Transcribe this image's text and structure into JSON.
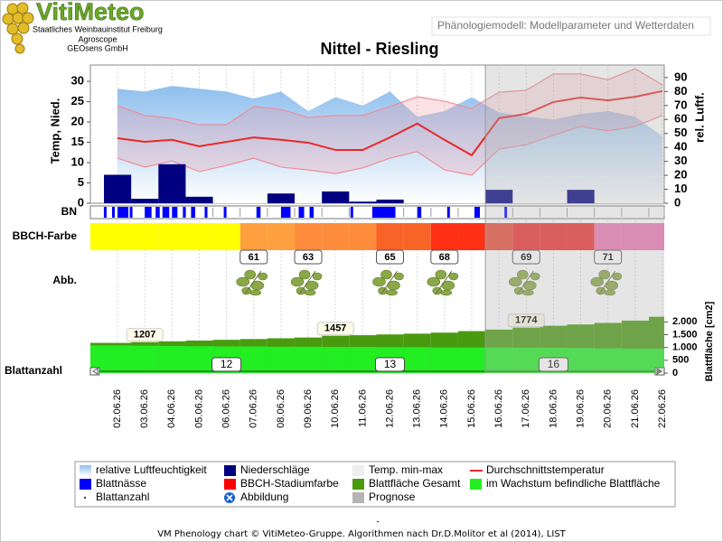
{
  "header": {
    "logo": "VitiMeteo",
    "institutions": [
      "Staatliches Weinbauinstitut Freiburg",
      "Agroscope",
      "GEOsens GmbH"
    ],
    "page_title": "Phänologiemodell: Modellparameter und Wetterdaten"
  },
  "chart_data": {
    "type": "combo",
    "title": "Nittel - Riesling",
    "categories": [
      "02.06.26",
      "03.06.26",
      "04.06.26",
      "05.06.26",
      "06.06.26",
      "07.06.26",
      "08.06.26",
      "09.06.26",
      "10.06.26",
      "11.06.26",
      "12.06.26",
      "13.06.26",
      "14.06.26",
      "15.06.26",
      "16.06.26",
      "17.06.26",
      "18.06.26",
      "19.06.26",
      "20.06.26",
      "21.06.26",
      "22.06.26"
    ],
    "prognosis": {
      "name": "Prognose",
      "from": "16.06.26",
      "color": "#b4b4b4"
    },
    "weather": {
      "ylabel": "Temp, Nied.",
      "y2label": "rel. Luftf.",
      "ylim": [
        0,
        34
      ],
      "yticks": [
        0,
        5,
        10,
        15,
        20,
        25,
        30
      ],
      "y2lim": [
        0,
        99
      ],
      "y2ticks": [
        0,
        10,
        20,
        30,
        40,
        50,
        60,
        70,
        80,
        90
      ],
      "humidity": {
        "name": "relative Luftfeuchtigkeit",
        "color": "#8fbfee",
        "axis": "y2",
        "values": [
          82,
          80,
          84,
          82,
          80,
          75,
          80,
          66,
          76,
          70,
          80,
          62,
          66,
          76,
          65,
          62,
          60,
          64,
          66,
          62,
          48
        ]
      },
      "precipitation": {
        "name": "Niederschläge",
        "color": "#000080",
        "values": [
          7.0,
          1.1,
          9.6,
          1.6,
          0,
          0,
          2.4,
          0,
          2.9,
          0.4,
          0.9,
          0,
          0,
          0,
          3.3,
          0,
          0,
          3.3,
          0,
          0,
          0
        ]
      },
      "temp_range": {
        "name": "Temp. min-max",
        "color": "#f08c96",
        "max": [
          24.0,
          21.6,
          20.9,
          19.3,
          19.3,
          23.8,
          23.1,
          21.1,
          21.6,
          21.6,
          23.8,
          26.2,
          25.1,
          23.3,
          27.3,
          27.8,
          31.8,
          31.8,
          30.4,
          33.1,
          29.1
        ],
        "min": [
          11.1,
          8.9,
          10.4,
          7.8,
          9.3,
          11.1,
          8.9,
          8.2,
          7.3,
          8.7,
          11.1,
          12.7,
          8.2,
          6.9,
          13.3,
          14.4,
          16.7,
          18.9,
          17.8,
          18.9,
          21.6
        ]
      },
      "temp_mean": {
        "name": "Durchschnittstemperatur",
        "color": "#e82828",
        "values": [
          16.0,
          15.1,
          15.6,
          14.0,
          15.1,
          16.2,
          15.6,
          14.9,
          13.1,
          13.1,
          16.2,
          19.6,
          15.6,
          11.8,
          20.9,
          22.0,
          24.9,
          26.0,
          25.3,
          26.2,
          27.6
        ]
      }
    },
    "wetness": {
      "label": "BN",
      "name": "Blattnässe",
      "color": "#0000ff",
      "intervals": [
        [
          -0.5,
          -0.4
        ],
        [
          -0.2,
          -0.1
        ],
        [
          0,
          0.4
        ],
        [
          0.45,
          0.55
        ],
        [
          1.0,
          1.25
        ],
        [
          1.4,
          1.55
        ],
        [
          1.65,
          1.9
        ],
        [
          2.0,
          2.2
        ],
        [
          2.4,
          2.5
        ],
        [
          2.7,
          2.85
        ],
        [
          3.2,
          3.3
        ],
        [
          3.9,
          4.0
        ],
        [
          5.1,
          5.25
        ],
        [
          6.0,
          6.35
        ],
        [
          6.65,
          6.85
        ],
        [
          7.05,
          7.2
        ],
        [
          8.55,
          8.65
        ],
        [
          9.35,
          10.2
        ],
        [
          11.0,
          11.15
        ],
        [
          12.1,
          12.2
        ],
        [
          13.1,
          13.3
        ],
        [
          14.2,
          14.3
        ]
      ]
    },
    "bbch": {
      "label": "BBCH-Farbe",
      "name": "BBCH-Stadiumfarbe",
      "color": "#ff0000",
      "colors": [
        "#ffff00",
        "#ffff00",
        "#ffff00",
        "#ffff00",
        "#ffff00",
        "#ffa040",
        "#ffa040",
        "#ff8c3c",
        "#ff8c3c",
        "#ff8c3c",
        "#f86428",
        "#f86428",
        "#ff3014",
        "#ff3014",
        "#ea4b36",
        "#f03030",
        "#f03030",
        "#f03030",
        "#ee78b4",
        "#ee78b4",
        "#ee78b4"
      ],
      "stages": [
        null,
        null,
        null,
        null,
        null,
        61,
        null,
        63,
        null,
        null,
        65,
        null,
        68,
        null,
        null,
        69,
        null,
        null,
        71,
        null,
        null
      ]
    },
    "images": {
      "label": "Abb.",
      "name": "Abbildung",
      "color": "#1a5fd0"
    },
    "leaf": {
      "ylabel": "Blattfläche [cm2]",
      "ylim": [
        0,
        2400
      ],
      "yticks": [
        0,
        500,
        {
          "value": 1000,
          "label": "1.000"
        },
        {
          "value": 1500,
          "label": "1.500"
        },
        {
          "value": 2000,
          "label": "2.000"
        }
      ],
      "total": {
        "name": "Blattfläche Gesamt",
        "color": "#4a9a10",
        "values": [
          1180,
          1207,
          1240,
          1270,
          1300,
          1330,
          1360,
          1390,
          1457,
          1480,
          1510,
          1540,
          1580,
          1640,
          1700,
          1774,
          1850,
          1900,
          1960,
          2050,
          2200
        ],
        "value_labels": [
          null,
          "1207",
          null,
          null,
          null,
          null,
          null,
          null,
          "1457",
          null,
          null,
          null,
          null,
          null,
          null,
          "1774",
          null,
          null,
          null,
          null,
          null
        ]
      },
      "growing": {
        "name": "im Wachstum befindliche Blattfläche",
        "color": "#22ee22",
        "values": [
          1080,
          1070,
          1060,
          1050,
          1040,
          1040,
          1030,
          1030,
          1020,
          1020,
          1010,
          1010,
          1000,
          1000,
          1000,
          990,
          990,
          980,
          970,
          960,
          950
        ]
      },
      "count": {
        "label": "Blattanzahl",
        "name": "Blattanzahl",
        "color": "#444444",
        "values": [
          null,
          null,
          null,
          null,
          12,
          null,
          null,
          null,
          null,
          null,
          13,
          null,
          null,
          null,
          null,
          null,
          16,
          null,
          null,
          null,
          null
        ]
      }
    }
  },
  "footer": {
    "dash": "-",
    "credit": "VM Phenology chart © VitiMeteo-Gruppe. Algorithmen nach Dr.D.Molitor et al (2014), LIST"
  }
}
